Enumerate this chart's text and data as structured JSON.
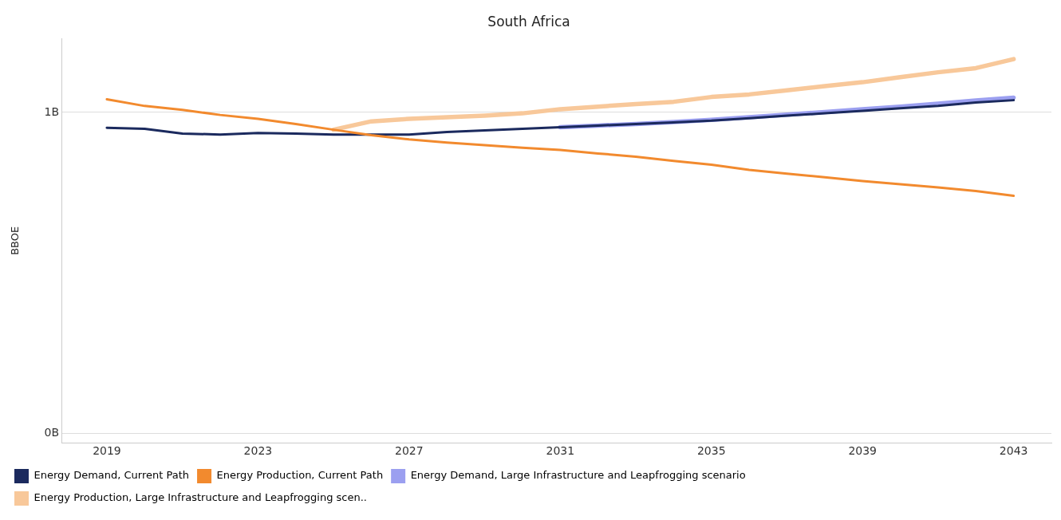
{
  "chart_data": {
    "type": "line",
    "title": "South Africa",
    "ylabel": "BBOE",
    "x": [
      2019,
      2020,
      2021,
      2022,
      2023,
      2024,
      2025,
      2026,
      2027,
      2028,
      2029,
      2030,
      2031,
      2032,
      2033,
      2034,
      2035,
      2036,
      2037,
      2038,
      2039,
      2040,
      2041,
      2042,
      2043
    ],
    "series": [
      {
        "name": "Energy Demand, Large Infrastructure and Leapfrogging scenario",
        "color": "#9b9ff0",
        "values": [
          null,
          null,
          null,
          null,
          null,
          null,
          null,
          null,
          null,
          null,
          null,
          null,
          0.954,
          0.959,
          0.964,
          0.97,
          0.977,
          0.985,
          0.993,
          1.001,
          1.01,
          1.018,
          1.027,
          1.037,
          1.046
        ]
      },
      {
        "name": "Energy Production, Large Infrastructure and Leapfrogging scen..",
        "color": "#f8c89a",
        "values": [
          null,
          null,
          null,
          null,
          null,
          null,
          0.946,
          0.972,
          0.98,
          0.985,
          0.99,
          0.997,
          1.01,
          1.018,
          1.026,
          1.033,
          1.048,
          1.056,
          1.069,
          1.082,
          1.094,
          1.11,
          1.125,
          1.138,
          1.166
        ]
      },
      {
        "name": "Energy Demand, Current Path",
        "color": "#1b2a5e",
        "values": [
          0.952,
          0.949,
          0.934,
          0.931,
          0.936,
          0.934,
          0.931,
          0.931,
          0.931,
          0.939,
          0.944,
          0.949,
          0.954,
          0.959,
          0.964,
          0.969,
          0.974,
          0.982,
          0.99,
          0.997,
          1.005,
          1.013,
          1.02,
          1.031,
          1.038
        ]
      },
      {
        "name": "Energy Production, Current Path",
        "color": "#f28a2e",
        "values": [
          1.041,
          1.02,
          1.008,
          0.992,
          0.98,
          0.964,
          0.946,
          0.929,
          0.916,
          0.906,
          0.898,
          0.89,
          0.883,
          0.872,
          0.862,
          0.849,
          0.837,
          0.821,
          0.809,
          0.798,
          0.786,
          0.776,
          0.766,
          0.755,
          0.74
        ]
      }
    ],
    "xlim": [
      2017.8,
      2044
    ],
    "xticks": [
      2019,
      2023,
      2027,
      2031,
      2035,
      2039,
      2043
    ],
    "ylim": [
      -0.03,
      1.23
    ],
    "yticks": [
      {
        "value": 0,
        "label": "0B"
      },
      {
        "value": 1,
        "label": "1B"
      }
    ],
    "grid": "y",
    "legend": "bottom",
    "marker": "none",
    "line_style": "solid"
  }
}
